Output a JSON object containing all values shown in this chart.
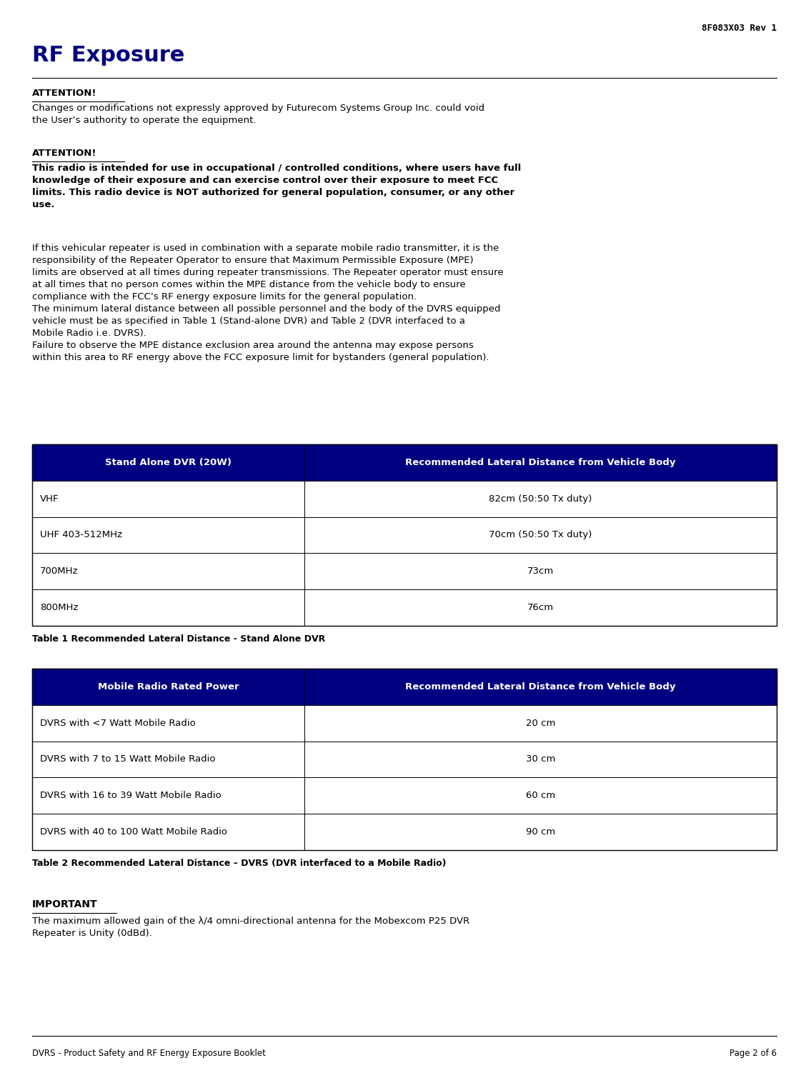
{
  "page_header": "8F083X03 Rev 1",
  "title": "RF Exposure",
  "footer_left": "DVRS - Product Safety and RF Energy Exposure Booklet",
  "footer_right": "Page 2 of 6",
  "header_color": "#000080",
  "table_header_bg": "#000080",
  "table_header_fg": "#FFFFFF",
  "table_row_bg": "#FFFFFF",
  "table_border_color": "#000000",
  "attention1_heading": "ATTENTION!",
  "attention1_body": "Changes or modifications not expressly approved by Futurecom Systems Group Inc. could void\nthe User’s authority to operate the equipment.",
  "attention2_heading": "ATTENTION!",
  "attention2_body": "This radio is intended for use in occupational / controlled conditions, where users have full\nknowledge of their exposure and can exercise control over their exposure to meet FCC\nlimits. This radio device is NOT authorized for general population, consumer, or any other\nuse.",
  "paragraph1": "If this vehicular repeater is used in combination with a separate mobile radio transmitter, it is the\nresponsibility of the Repeater Operator to ensure that Maximum Permissible Exposure (MPE)\nlimits are observed at all times during repeater transmissions. The Repeater operator must ensure\nat all times that no person comes within the MPE distance from the vehicle body to ensure\ncompliance with the FCC’s RF energy exposure limits for the general population.\nThe minimum lateral distance between all possible personnel and the body of the DVRS equipped\nvehicle must be as specified in Table 1 (Stand-alone DVR) and Table 2 (DVR interfaced to a\nMobile Radio i.e. DVRS).\nFailure to observe the MPE distance exclusion area around the antenna may expose persons\nwithin this area to RF energy above the FCC exposure limit for bystanders (general population).",
  "table1_header": [
    "Stand Alone DVR (20W)",
    "Recommended Lateral Distance from Vehicle Body"
  ],
  "table1_rows": [
    [
      "VHF",
      "82cm (50:50 Tx duty)"
    ],
    [
      "UHF 403-512MHz",
      "70cm (50:50 Tx duty)"
    ],
    [
      "700MHz",
      "73cm"
    ],
    [
      "800MHz",
      "76cm"
    ]
  ],
  "table1_caption": "Table 1 Recommended Lateral Distance - Stand Alone DVR",
  "table2_header": [
    "Mobile Radio Rated Power",
    "Recommended Lateral Distance from Vehicle Body"
  ],
  "table2_rows": [
    [
      "DVRS with <7 Watt Mobile Radio",
      "20 cm"
    ],
    [
      "DVRS with 7 to 15 Watt Mobile Radio",
      "30 cm"
    ],
    [
      "DVRS with 16 to 39 Watt Mobile Radio",
      "60 cm"
    ],
    [
      "DVRS with 40 to 100 Watt Mobile Radio",
      "90 cm"
    ]
  ],
  "table2_caption": "Table 2 Recommended Lateral Distance – DVRS (DVR interfaced to a Mobile Radio)",
  "important_heading": "IMPORTANT",
  "important_body": "The maximum allowed gain of the λ/4 omni-directional antenna for the Mobexcom P25 DVR\nRepeater is Unity (0dBd).",
  "bg_color": "#FFFFFF",
  "text_color": "#000000"
}
